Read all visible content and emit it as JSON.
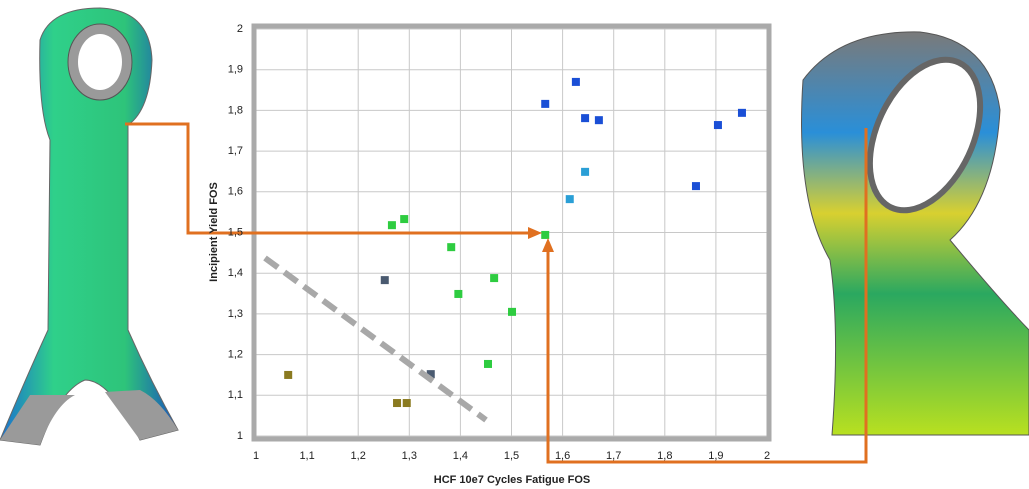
{
  "chart_data": {
    "type": "scatter",
    "xlabel": "HCF 10e7 Cycles Fatigue FOS",
    "ylabel": "Incipient Yield FOS",
    "xlim": [
      1,
      2
    ],
    "ylim": [
      1,
      2
    ],
    "xticks": [
      1,
      {
        "value": 1.1,
        "label": "1,1"
      },
      {
        "value": 1.2,
        "label": "1,2"
      },
      {
        "value": 1.3,
        "label": "1,3"
      },
      {
        "value": 1.4,
        "label": "1,4"
      },
      {
        "value": 1.5,
        "label": "1,5"
      },
      {
        "value": 1.6,
        "label": "1,6"
      },
      {
        "value": 1.7,
        "label": "1,7"
      },
      {
        "value": 1.8,
        "label": "1,8"
      },
      {
        "value": 1.9,
        "label": "1,9"
      },
      2
    ],
    "yticks": [
      1,
      {
        "value": 1.1,
        "label": "1,1"
      },
      {
        "value": 1.2,
        "label": "1,2"
      },
      {
        "value": 1.3,
        "label": "1,3"
      },
      {
        "value": 1.4,
        "label": "1,4"
      },
      {
        "value": 1.5,
        "label": "1,5"
      },
      {
        "value": 1.6,
        "label": "1,6"
      },
      {
        "value": 1.7,
        "label": "1,7"
      },
      {
        "value": 1.8,
        "label": "1,8"
      },
      {
        "value": 1.9,
        "label": "1,9"
      },
      2
    ],
    "grid": true,
    "series": [
      {
        "color": "#1a4fd6",
        "x": [
          1.566,
          1.626,
          1.644,
          1.671,
          1.861,
          1.904,
          1.951
        ],
        "values": [
          1.816,
          1.87,
          1.781,
          1.776,
          1.614,
          1.764,
          1.794
        ]
      },
      {
        "color": "#2a9fd6",
        "x": [
          1.644,
          1.614
        ],
        "values": [
          1.649,
          1.582
        ]
      },
      {
        "color": "#2ecc40",
        "x": [
          1.566,
          1.266,
          1.29,
          1.382,
          1.396,
          1.466,
          1.501,
          1.454
        ],
        "values": [
          1.494,
          1.518,
          1.533,
          1.464,
          1.349,
          1.388,
          1.305,
          1.177
        ]
      },
      {
        "color": "#4a5a70",
        "x": [
          1.252,
          1.342
        ],
        "values": [
          1.383,
          1.152
        ]
      },
      {
        "color": "#8a7a20",
        "x": [
          1.063,
          1.276,
          1.295
        ],
        "values": [
          1.15,
          1.081,
          1.081
        ]
      }
    ]
  }
}
